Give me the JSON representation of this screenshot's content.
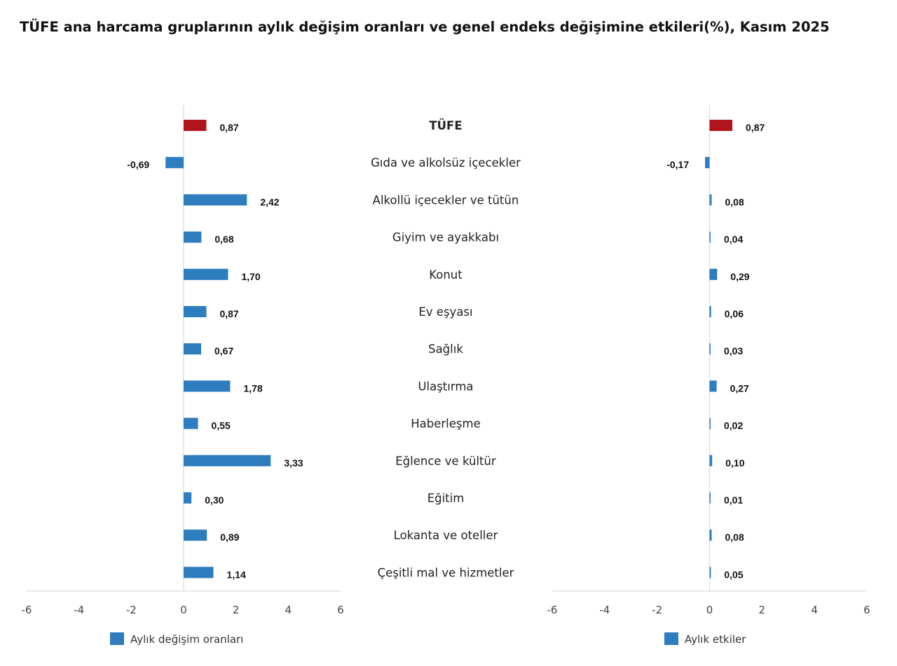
{
  "title": "TÜFE ana harcama gruplarının aylık değişim oranları ve genel endeks değişimine etkileri(%), Kasım 2025",
  "colors": {
    "highlight": "#b0141c",
    "bar": "#2e7dbf",
    "axis": "#d9d9d9"
  },
  "chart_data": [
    {
      "type": "bar",
      "orientation": "horizontal",
      "categories": [
        "TÜFE",
        "Gıda ve alkolsüz içecekler",
        "Alkollü içecekler ve tütün",
        "Giyim ve ayakkabı",
        "Konut",
        "Ev eşyası",
        "Sağlık",
        "Ulaştırma",
        "Haberleşme",
        "Eğlence ve kültür",
        "Eğitim",
        "Lokanta ve oteller",
        "Çeşitli mal ve hizmetler"
      ],
      "series": [
        {
          "name": "Aylık değişim oranları",
          "values": [
            0.87,
            -0.69,
            2.42,
            0.68,
            1.7,
            0.87,
            0.67,
            1.78,
            0.55,
            3.33,
            0.3,
            0.89,
            1.14
          ]
        }
      ],
      "data_labels": [
        "0,87",
        "-0,69",
        "2,42",
        "0,68",
        "1,70",
        "0,87",
        "0,67",
        "1,78",
        "0,55",
        "3,33",
        "0,30",
        "0,89",
        "1,14"
      ],
      "xlim": [
        -6,
        6
      ],
      "xticks": [
        "-6",
        "-4",
        "-2",
        "0",
        "2",
        "4",
        "6"
      ],
      "legend": "bottom",
      "grid": false
    },
    {
      "type": "bar",
      "orientation": "horizontal",
      "categories": [
        "TÜFE",
        "Gıda ve alkolsüz içecekler",
        "Alkollü içecekler ve tütün",
        "Giyim ve ayakkabı",
        "Konut",
        "Ev eşyası",
        "Sağlık",
        "Ulaştırma",
        "Haberleşme",
        "Eğlence ve kültür",
        "Eğitim",
        "Lokanta ve oteller",
        "Çeşitli mal ve hizmetler"
      ],
      "series": [
        {
          "name": "Aylık etkiler",
          "values": [
            0.87,
            -0.17,
            0.08,
            0.04,
            0.29,
            0.06,
            0.03,
            0.27,
            0.02,
            0.1,
            0.01,
            0.08,
            0.05
          ]
        }
      ],
      "data_labels": [
        "0,87",
        "-0,17",
        "0,08",
        "0,04",
        "0,29",
        "0,06",
        "0,03",
        "0,27",
        "0,02",
        "0,10",
        "0,01",
        "0,08",
        "0,05"
      ],
      "xlim": [
        -6,
        6
      ],
      "xticks": [
        "-6",
        "-4",
        "-2",
        "0",
        "2",
        "4",
        "6"
      ],
      "legend": "bottom",
      "grid": false
    }
  ]
}
